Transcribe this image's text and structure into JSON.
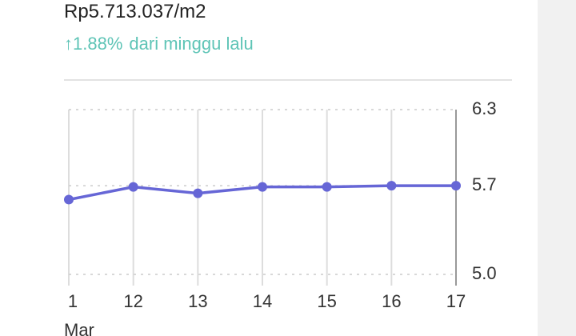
{
  "header": {
    "price": "Rp5.713.037/m2",
    "change": "↑1.88%",
    "change_label": "dari minggu lalu"
  },
  "chart_data": {
    "type": "line",
    "categories": [
      "1",
      "12",
      "13",
      "14",
      "15",
      "16",
      "17"
    ],
    "x_label": "Mar",
    "series": [
      {
        "color": "#6666d6",
        "values": [
          5.59,
          5.69,
          5.64,
          5.69,
          5.69,
          5.7,
          5.7
        ]
      }
    ],
    "ylim": [
      5.0,
      6.3
    ],
    "yticks": [
      {
        "value": 5,
        "label": "5.0"
      },
      5.7,
      6.3
    ],
    "grid": true
  }
}
